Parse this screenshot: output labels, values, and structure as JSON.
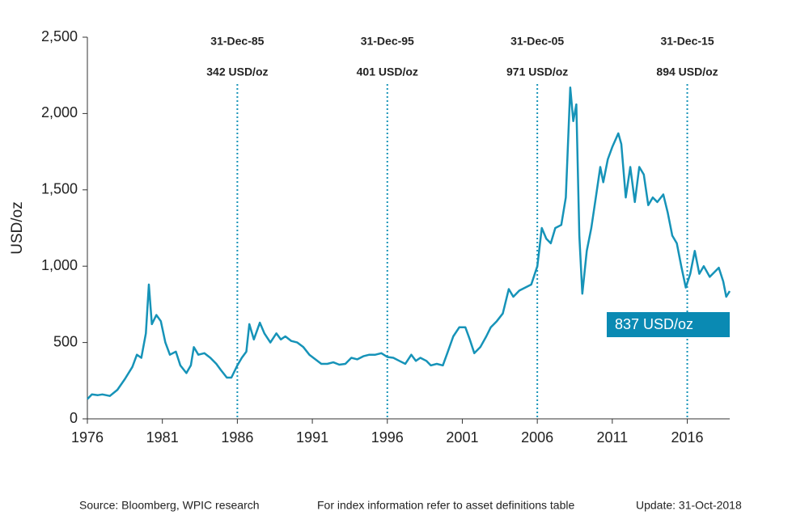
{
  "chart_data": {
    "type": "line",
    "y_label": "USD/oz",
    "xlim": [
      1976,
      2018.83
    ],
    "xticks": [
      1976,
      1981,
      1986,
      1991,
      1996,
      2001,
      2006,
      2011,
      2016
    ],
    "ylim": [
      0,
      2500
    ],
    "yticks": [
      0,
      500,
      {
        "value": 1000,
        "label": "1,000"
      },
      {
        "value": 1500,
        "label": "1,500"
      },
      {
        "value": 2000,
        "label": "2,000"
      },
      {
        "value": 2500,
        "label": "2,500"
      }
    ],
    "x": [
      1976.0,
      1976.3,
      1976.7,
      1977.0,
      1977.5,
      1978.0,
      1978.5,
      1979.0,
      1979.3,
      1979.6,
      1979.9,
      1980.1,
      1980.3,
      1980.6,
      1980.9,
      1981.2,
      1981.5,
      1981.9,
      1982.2,
      1982.6,
      1982.9,
      1983.1,
      1983.4,
      1983.8,
      1984.2,
      1984.6,
      1984.9,
      1985.3,
      1985.6,
      1986.0,
      1986.3,
      1986.6,
      1986.8,
      1987.1,
      1987.5,
      1987.8,
      1988.2,
      1988.6,
      1988.9,
      1989.2,
      1989.6,
      1990.0,
      1990.4,
      1990.8,
      1991.2,
      1991.6,
      1992.0,
      1992.4,
      1992.8,
      1993.2,
      1993.6,
      1994.0,
      1994.4,
      1994.8,
      1995.2,
      1995.6,
      1996.0,
      1996.4,
      1996.8,
      1997.2,
      1997.6,
      1997.9,
      1998.2,
      1998.6,
      1998.9,
      1999.3,
      1999.7,
      2000.0,
      2000.4,
      2000.8,
      2001.2,
      2001.5,
      2001.8,
      2002.2,
      2002.6,
      2002.9,
      2003.3,
      2003.7,
      2004.1,
      2004.4,
      2004.8,
      2005.2,
      2005.6,
      2006.0,
      2006.3,
      2006.6,
      2006.9,
      2007.2,
      2007.6,
      2007.9,
      2008.2,
      2008.4,
      2008.6,
      2008.8,
      2009.0,
      2009.3,
      2009.6,
      2009.9,
      2010.2,
      2010.4,
      2010.7,
      2011.0,
      2011.4,
      2011.6,
      2011.9,
      2012.2,
      2012.5,
      2012.8,
      2013.1,
      2013.4,
      2013.7,
      2014.0,
      2014.4,
      2014.7,
      2015.0,
      2015.3,
      2015.6,
      2015.9,
      2016.2,
      2016.5,
      2016.8,
      2017.1,
      2017.5,
      2017.8,
      2018.1,
      2018.4,
      2018.6,
      2018.83
    ],
    "series": [
      {
        "color": "#1693b8",
        "values": [
          130,
          160,
          155,
          160,
          150,
          190,
          260,
          340,
          420,
          400,
          560,
          880,
          620,
          680,
          640,
          500,
          420,
          440,
          350,
          300,
          350,
          470,
          420,
          430,
          400,
          360,
          320,
          270,
          270,
          350,
          400,
          440,
          620,
          520,
          630,
          560,
          500,
          560,
          520,
          540,
          510,
          500,
          470,
          420,
          390,
          360,
          360,
          370,
          355,
          360,
          400,
          390,
          410,
          420,
          420,
          430,
          405,
          400,
          380,
          360,
          420,
          380,
          400,
          380,
          350,
          360,
          350,
          430,
          540,
          600,
          600,
          520,
          430,
          470,
          540,
          600,
          640,
          690,
          850,
          800,
          840,
          860,
          880,
          1000,
          1250,
          1180,
          1150,
          1250,
          1270,
          1450,
          2170,
          1950,
          2060,
          1200,
          820,
          1100,
          1250,
          1450,
          1650,
          1550,
          1700,
          1780,
          1870,
          1800,
          1450,
          1650,
          1420,
          1650,
          1600,
          1400,
          1450,
          1420,
          1470,
          1350,
          1200,
          1150,
          1000,
          860,
          950,
          1100,
          950,
          1000,
          930,
          960,
          990,
          900,
          800,
          837
        ]
      }
    ],
    "annotations": [
      {
        "x": 1986,
        "date": "31-Dec-85",
        "price": "342 USD/oz"
      },
      {
        "x": 1996,
        "date": "31-Dec-95",
        "price": "401 USD/oz"
      },
      {
        "x": 2006,
        "date": "31-Dec-05",
        "price": "971 USD/oz"
      },
      {
        "x": 2016,
        "date": "31-Dec-15",
        "price": "894 USD/oz"
      }
    ],
    "last_label": "837 USD/oz",
    "footer": {
      "source": "Source: Bloomberg, WPIC research",
      "note": "For index information refer to asset definitions table",
      "update": "Update: 31-Oct-2018"
    }
  }
}
